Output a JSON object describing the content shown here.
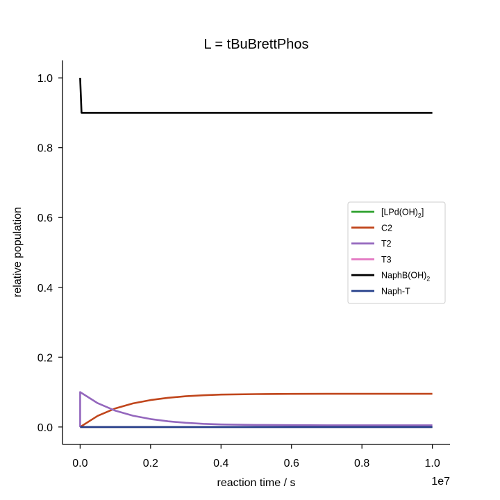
{
  "chart_data": {
    "type": "line",
    "title": "L = tBuBrettPhos",
    "xlabel": "reaction time / s",
    "ylabel": "relative population",
    "x_offset_label": "1e7",
    "xlim": [
      -0.05,
      1.05
    ],
    "ylim": [
      -0.05,
      1.05
    ],
    "x_ticks": [
      0.0,
      0.2,
      0.4,
      0.6,
      0.8,
      1.0
    ],
    "x_tick_labels": [
      "0.0",
      "0.2",
      "0.4",
      "0.6",
      "0.8",
      "1.0"
    ],
    "y_ticks": [
      0.0,
      0.2,
      0.4,
      0.6,
      0.8,
      1.0
    ],
    "y_tick_labels": [
      "0.0",
      "0.2",
      "0.4",
      "0.6",
      "0.8",
      "1.0"
    ],
    "grid": false,
    "legend_position": "center-right",
    "series": [
      {
        "name": "[LPd(OH)2]",
        "legend_base": "[LPd(OH)",
        "legend_sub": "2",
        "legend_tail": "]",
        "color": "#2ca02c",
        "x": [
          0.0,
          1.0
        ],
        "y": [
          0.0,
          0.0
        ]
      },
      {
        "name": "C2",
        "legend_base": "C2",
        "color": "#c0461c",
        "x": [
          0.0,
          0.05,
          0.1,
          0.15,
          0.2,
          0.25,
          0.3,
          0.35,
          0.4,
          0.5,
          0.6,
          0.7,
          0.8,
          0.9,
          1.0
        ],
        "y": [
          0.0,
          0.0319,
          0.0533,
          0.0676,
          0.0772,
          0.0837,
          0.088,
          0.0909,
          0.0928,
          0.0942,
          0.0948,
          0.095,
          0.0951,
          0.0951,
          0.0951
        ]
      },
      {
        "name": "T2",
        "legend_base": "T2",
        "color": "#9467bd",
        "x": [
          0.0,
          0.0,
          0.05,
          0.1,
          0.15,
          0.2,
          0.25,
          0.3,
          0.35,
          0.4,
          0.5,
          0.6,
          0.7,
          0.8,
          0.9,
          1.0
        ],
        "y": [
          0.0,
          0.1,
          0.0681,
          0.0466,
          0.0324,
          0.0228,
          0.0163,
          0.012,
          0.0091,
          0.0072,
          0.0058,
          0.0052,
          0.005,
          0.0049,
          0.0049,
          0.0049
        ]
      },
      {
        "name": "T3",
        "legend_base": "T3",
        "color": "#e377c2",
        "x": [
          0.0,
          1.0
        ],
        "y": [
          0.0,
          0.0
        ]
      },
      {
        "name": "NaphB(OH)2",
        "legend_base": "NaphB(OH)",
        "legend_sub": "2",
        "color": "#000000",
        "x": [
          0.0,
          0.004,
          1.0
        ],
        "y": [
          1.0,
          0.9,
          0.9
        ]
      },
      {
        "name": "Naph-T",
        "legend_base": "Naph-T",
        "color": "#253f8a",
        "x": [
          0.0,
          1.0
        ],
        "y": [
          0.0,
          0.0
        ]
      }
    ]
  }
}
